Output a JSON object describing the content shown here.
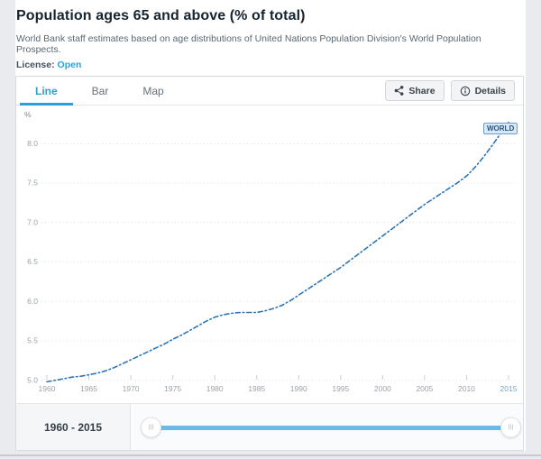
{
  "page": {
    "title": "Population ages 65 and above (% of total)",
    "subtitle": "World Bank staff estimates based on age distributions of United Nations Population Division's World Population Prospects.",
    "license_label": "License:",
    "license_value": "Open"
  },
  "tabs": [
    {
      "label": "Line",
      "active": true
    },
    {
      "label": "Bar",
      "active": false
    },
    {
      "label": "Map",
      "active": false
    }
  ],
  "actions": {
    "share_label": "Share",
    "details_label": "Details"
  },
  "chart_data": {
    "type": "line",
    "title": "Population ages 65 and above (% of total)",
    "unit_label": "%",
    "x_start": 1960,
    "x_ticks": [
      1960,
      1965,
      1970,
      1975,
      1980,
      1985,
      1990,
      1995,
      2000,
      2005,
      2010,
      2015
    ],
    "y_ticks": [
      5.0,
      5.5,
      6.0,
      6.5,
      7.0,
      7.5,
      8.0
    ],
    "ylim": [
      4.9,
      8.5
    ],
    "xlim": [
      1958,
      2017
    ],
    "grid": "dotted-horizontal",
    "legend_position": "end-of-line",
    "series": [
      {
        "name": "WORLD",
        "values": [
          4.98,
          5.0,
          5.02,
          5.04,
          5.05,
          5.07,
          5.09,
          5.12,
          5.16,
          5.21,
          5.26,
          5.31,
          5.36,
          5.41,
          5.46,
          5.52,
          5.57,
          5.63,
          5.69,
          5.75,
          5.8,
          5.83,
          5.85,
          5.86,
          5.86,
          5.86,
          5.88,
          5.91,
          5.95,
          6.01,
          6.08,
          6.15,
          6.22,
          6.29,
          6.36,
          6.43,
          6.51,
          6.59,
          6.67,
          6.75,
          6.83,
          6.91,
          6.99,
          7.07,
          7.15,
          7.23,
          7.3,
          7.37,
          7.44,
          7.51,
          7.59,
          7.7,
          7.83,
          7.97,
          8.12,
          8.27
        ]
      }
    ],
    "end_label": "WORLD",
    "line_color": "#2d75b8"
  },
  "footer": {
    "range_label": "1960 - 2015",
    "slider": {
      "min": 1960,
      "max": 2015,
      "start": 1960,
      "end": 2015
    }
  },
  "colors": {
    "accent_blue": "#2aa0db",
    "line_blue": "#2d75b8",
    "track_blue": "#6cb9e9",
    "page_bg": "#e9ebef",
    "grid": "#dcdfe3",
    "axis_text": "#9aa2aa",
    "last_tick_text": "#7da2c4"
  }
}
